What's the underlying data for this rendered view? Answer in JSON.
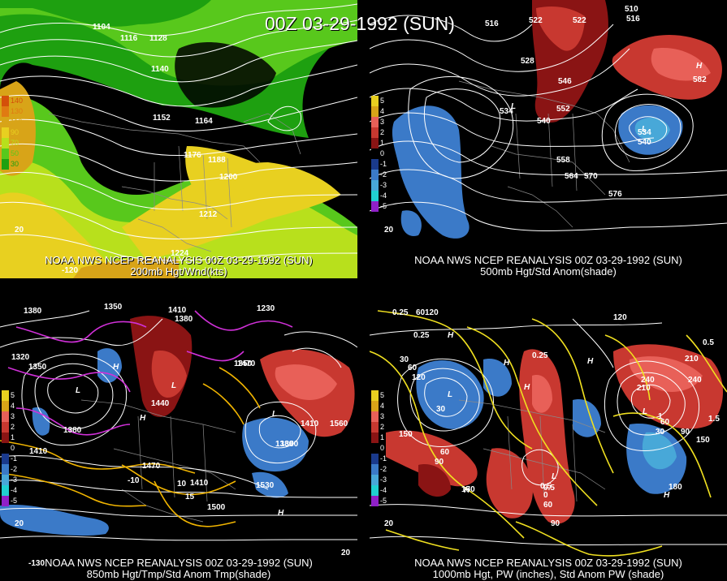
{
  "title": "00Z 03-29-1992 (SUN)",
  "panels": {
    "p1": {
      "caption1": "NOAA NWS NCEP REANALYSIS 00Z 03-29-1992 (SUN)",
      "caption2": "200mb Hgt/Wnd(kts)",
      "legend": [
        {
          "label": "140",
          "color": "#d4500a"
        },
        {
          "label": "130",
          "color": "#e07a12"
        },
        {
          "label": "110",
          "color": "#d8a418"
        },
        {
          "label": "90",
          "color": "#e8d020"
        },
        {
          "label": "70",
          "color": "#b8e01c"
        },
        {
          "label": "50",
          "color": "#58c81c"
        },
        {
          "label": "30",
          "color": "#1ea010"
        }
      ],
      "contour_labels": [
        "1104",
        "1116",
        "1128",
        "1140",
        "1152",
        "1164",
        "1176",
        "1188",
        "1200",
        "1212",
        "1224"
      ],
      "other_labels": [
        "20",
        "-120"
      ]
    },
    "p2": {
      "caption1": "NOAA NWS NCEP REANALYSIS 00Z 03-29-1992 (SUN)",
      "caption2": "500mb Hgt/Std Anom(shade)",
      "legend": [
        {
          "label": "5",
          "color": "#e8d020"
        },
        {
          "label": "4",
          "color": "#d8a418"
        },
        {
          "label": "3",
          "color": "#e86058"
        },
        {
          "label": "2",
          "color": "#c83830"
        },
        {
          "label": "1",
          "color": "#8a1414"
        },
        {
          "label": "0",
          "color": "#000000"
        },
        {
          "label": "-1",
          "color": "#1a3a8c"
        },
        {
          "label": "-2",
          "color": "#3b7ac8"
        },
        {
          "label": "-3",
          "color": "#48a8d8"
        },
        {
          "label": "-4",
          "color": "#20d0d0"
        },
        {
          "label": "-5",
          "color": "#9020c8"
        }
      ],
      "contour_labels": [
        "516",
        "522",
        "522",
        "528",
        "534",
        "540",
        "546",
        "552",
        "558",
        "564",
        "570",
        "576",
        "582",
        "510",
        "516",
        "534",
        "540"
      ],
      "symbols": [
        "L",
        "L",
        "H"
      ],
      "other_labels": [
        "20"
      ]
    },
    "p3": {
      "caption1": "NOAA NWS NCEP REANALYSIS 00Z 03-29-1992 (SUN)",
      "caption2": "850mb Hgt/Tmp/Std Anom Tmp(shade)",
      "legend": [
        {
          "label": "5",
          "color": "#e8d020"
        },
        {
          "label": "4",
          "color": "#d8a418"
        },
        {
          "label": "3",
          "color": "#e86058"
        },
        {
          "label": "2",
          "color": "#c83830"
        },
        {
          "label": "1",
          "color": "#8a1414"
        },
        {
          "label": "0",
          "color": "#000000"
        },
        {
          "label": "-1",
          "color": "#1a3a8c"
        },
        {
          "label": "-2",
          "color": "#3b7ac8"
        },
        {
          "label": "-3",
          "color": "#48a8d8"
        },
        {
          "label": "-4",
          "color": "#20d0d0"
        },
        {
          "label": "-5",
          "color": "#9020c8"
        }
      ],
      "contour_labels": [
        "1380",
        "1350",
        "1410",
        "1380",
        "1320",
        "1350",
        "1380",
        "1410",
        "1470",
        "1440",
        "1410",
        "1530",
        "1500",
        "1560",
        "1410",
        "1380",
        "1380",
        "1230",
        "1350",
        "1470"
      ],
      "temp_labels": [
        "-10",
        "15",
        "10",
        "20"
      ],
      "symbols": [
        "L",
        "H",
        "L",
        "H",
        "L",
        "H"
      ],
      "other_labels": [
        "20",
        "-130"
      ]
    },
    "p4": {
      "caption1": "NOAA NWS NCEP REANALYSIS 00Z 03-29-1992 (SUN)",
      "caption2": "1000mb Hgt, PW (inches), Std Anom PW (shade)",
      "legend": [
        {
          "label": "5",
          "color": "#e8d020"
        },
        {
          "label": "4",
          "color": "#d8a418"
        },
        {
          "label": "3",
          "color": "#e86058"
        },
        {
          "label": "2",
          "color": "#c83830"
        },
        {
          "label": "1",
          "color": "#8a1414"
        },
        {
          "label": "0",
          "color": "#000000"
        },
        {
          "label": "-1",
          "color": "#1a3a8c"
        },
        {
          "label": "-2",
          "color": "#3b7ac8"
        },
        {
          "label": "-3",
          "color": "#48a8d8"
        },
        {
          "label": "-4",
          "color": "#20d0d0"
        },
        {
          "label": "-5",
          "color": "#9020c8"
        }
      ],
      "contour_labels": [
        "60",
        "120",
        "30",
        "60",
        "120",
        "30",
        "150",
        "60",
        "90",
        "150",
        "180",
        "90",
        "120",
        "210",
        "240",
        "210",
        "240",
        "60",
        "30",
        "150",
        "90",
        "0",
        "60"
      ],
      "pw_labels": [
        "0.25",
        "0.25",
        "0.25",
        "0.5",
        "0.5",
        "1",
        "1.5",
        "0.5"
      ],
      "symbols": [
        "H",
        "H",
        "L",
        "H",
        "H",
        "L",
        "H",
        "L",
        "H"
      ],
      "other_labels": [
        "20"
      ]
    }
  },
  "colors": {
    "background": "#000000",
    "contour": "#ffffff",
    "map_lines": "#8a8a8a",
    "tmp_contour_warm": "#f0b400",
    "tmp_contour_cold": "#d030d8",
    "pw_contour": "#f0e020"
  }
}
